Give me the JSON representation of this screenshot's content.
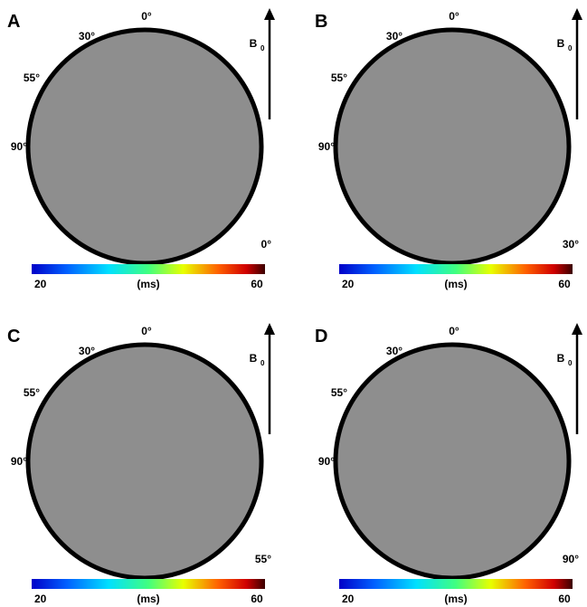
{
  "panels": [
    {
      "letter": "A",
      "angles": [
        "0°",
        "30°",
        "55°",
        "90°"
      ],
      "field": {
        "base": "B",
        "sub": "0"
      },
      "orientation": "0°",
      "colorbar": {
        "min": "20",
        "unit": "(ms)",
        "max": "60"
      }
    },
    {
      "letter": "B",
      "angles": [
        "0°",
        "30°",
        "55°",
        "90°"
      ],
      "field": {
        "base": "B",
        "sub": "0"
      },
      "orientation": "30°",
      "colorbar": {
        "min": "20",
        "unit": "(ms)",
        "max": "60"
      }
    },
    {
      "letter": "C",
      "angles": [
        "0°",
        "30°",
        "55°",
        "90°"
      ],
      "field": {
        "base": "B",
        "sub": "0"
      },
      "orientation": "55°",
      "colorbar": {
        "min": "20",
        "unit": "(ms)",
        "max": "60"
      }
    },
    {
      "letter": "D",
      "angles": [
        "0°",
        "30°",
        "55°",
        "90°"
      ],
      "field": {
        "base": "B",
        "sub": "0"
      },
      "orientation": "90°",
      "colorbar": {
        "min": "20",
        "unit": "(ms)",
        "max": "60"
      }
    }
  ]
}
